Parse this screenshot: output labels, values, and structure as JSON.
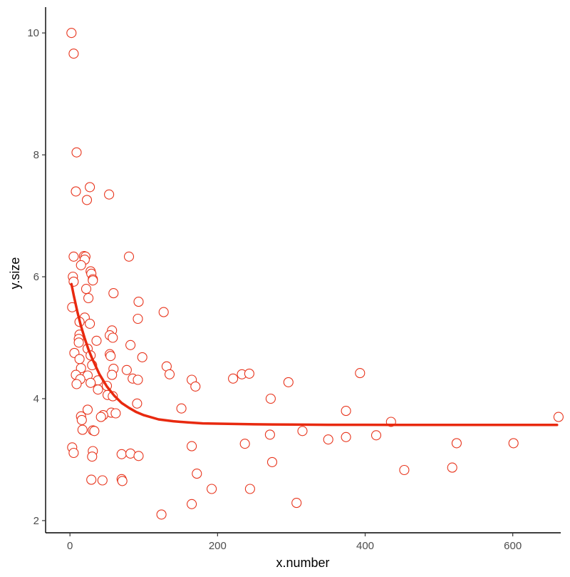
{
  "chart_data": {
    "type": "scatter",
    "title": "",
    "xlabel": "x.number",
    "ylabel": "y.size",
    "xlim": [
      -33,
      665
    ],
    "ylim": [
      1.8,
      10.4
    ],
    "xticks": [
      0,
      200,
      400,
      600
    ],
    "yticks": [
      2,
      4,
      6,
      8,
      10
    ],
    "grid": false,
    "legend": "none",
    "colors": {
      "points": "#e8341c",
      "curve": "#e8290f",
      "axis": "#000000",
      "tick_text": "#4d4d4d"
    },
    "points": [
      {
        "x": 2,
        "y": 10.0
      },
      {
        "x": 5,
        "y": 9.66
      },
      {
        "x": 9,
        "y": 8.04
      },
      {
        "x": 27,
        "y": 7.47
      },
      {
        "x": 8,
        "y": 7.4
      },
      {
        "x": 53,
        "y": 7.35
      },
      {
        "x": 23,
        "y": 7.26
      },
      {
        "x": 5,
        "y": 6.33
      },
      {
        "x": 19,
        "y": 6.34
      },
      {
        "x": 21,
        "y": 6.33
      },
      {
        "x": 80,
        "y": 6.33
      },
      {
        "x": 20,
        "y": 6.28
      },
      {
        "x": 15,
        "y": 6.19
      },
      {
        "x": 28,
        "y": 6.09
      },
      {
        "x": 29,
        "y": 6.05
      },
      {
        "x": 4,
        "y": 6.0
      },
      {
        "x": 31,
        "y": 5.96
      },
      {
        "x": 31,
        "y": 5.94
      },
      {
        "x": 5,
        "y": 5.92
      },
      {
        "x": 22,
        "y": 5.8
      },
      {
        "x": 59,
        "y": 5.73
      },
      {
        "x": 25,
        "y": 5.65
      },
      {
        "x": 93,
        "y": 5.59
      },
      {
        "x": 3,
        "y": 5.5
      },
      {
        "x": 127,
        "y": 5.42
      },
      {
        "x": 20,
        "y": 5.33
      },
      {
        "x": 92,
        "y": 5.31
      },
      {
        "x": 13,
        "y": 5.26
      },
      {
        "x": 27,
        "y": 5.23
      },
      {
        "x": 57,
        "y": 5.12
      },
      {
        "x": 13,
        "y": 5.05
      },
      {
        "x": 54,
        "y": 5.04
      },
      {
        "x": 58,
        "y": 5.0
      },
      {
        "x": 12,
        "y": 4.98
      },
      {
        "x": 36,
        "y": 4.95
      },
      {
        "x": 12,
        "y": 4.92
      },
      {
        "x": 82,
        "y": 4.88
      },
      {
        "x": 24,
        "y": 4.82
      },
      {
        "x": 6,
        "y": 4.75
      },
      {
        "x": 54,
        "y": 4.73
      },
      {
        "x": 28,
        "y": 4.71
      },
      {
        "x": 55,
        "y": 4.7
      },
      {
        "x": 98,
        "y": 4.68
      },
      {
        "x": 13,
        "y": 4.65
      },
      {
        "x": 30,
        "y": 4.55
      },
      {
        "x": 131,
        "y": 4.53
      },
      {
        "x": 15,
        "y": 4.5
      },
      {
        "x": 59,
        "y": 4.49
      },
      {
        "x": 77,
        "y": 4.47
      },
      {
        "x": 233,
        "y": 4.4
      },
      {
        "x": 8,
        "y": 4.39
      },
      {
        "x": 57,
        "y": 4.39
      },
      {
        "x": 24,
        "y": 4.38
      },
      {
        "x": 243,
        "y": 4.41
      },
      {
        "x": 135,
        "y": 4.4
      },
      {
        "x": 393,
        "y": 4.42
      },
      {
        "x": 85,
        "y": 4.33
      },
      {
        "x": 14,
        "y": 4.32
      },
      {
        "x": 92,
        "y": 4.31
      },
      {
        "x": 165,
        "y": 4.31
      },
      {
        "x": 221,
        "y": 4.33
      },
      {
        "x": 38,
        "y": 4.3
      },
      {
        "x": 28,
        "y": 4.26
      },
      {
        "x": 296,
        "y": 4.27
      },
      {
        "x": 9,
        "y": 4.24
      },
      {
        "x": 50,
        "y": 4.21
      },
      {
        "x": 170,
        "y": 4.2
      },
      {
        "x": 38,
        "y": 4.15
      },
      {
        "x": 51,
        "y": 4.06
      },
      {
        "x": 58,
        "y": 4.04
      },
      {
        "x": 272,
        "y": 4.0
      },
      {
        "x": 91,
        "y": 3.92
      },
      {
        "x": 151,
        "y": 3.84
      },
      {
        "x": 24,
        "y": 3.82
      },
      {
        "x": 374,
        "y": 3.8
      },
      {
        "x": 56,
        "y": 3.77
      },
      {
        "x": 62,
        "y": 3.76
      },
      {
        "x": 45,
        "y": 3.73
      },
      {
        "x": 15,
        "y": 3.71
      },
      {
        "x": 42,
        "y": 3.7
      },
      {
        "x": 662,
        "y": 3.7
      },
      {
        "x": 16,
        "y": 3.65
      },
      {
        "x": 435,
        "y": 3.62
      },
      {
        "x": 17,
        "y": 3.49
      },
      {
        "x": 31,
        "y": 3.48
      },
      {
        "x": 33,
        "y": 3.47
      },
      {
        "x": 315,
        "y": 3.47
      },
      {
        "x": 271,
        "y": 3.41
      },
      {
        "x": 415,
        "y": 3.4
      },
      {
        "x": 374,
        "y": 3.37
      },
      {
        "x": 350,
        "y": 3.33
      },
      {
        "x": 524,
        "y": 3.27
      },
      {
        "x": 237,
        "y": 3.26
      },
      {
        "x": 601,
        "y": 3.27
      },
      {
        "x": 165,
        "y": 3.22
      },
      {
        "x": 3,
        "y": 3.2
      },
      {
        "x": 31,
        "y": 3.14
      },
      {
        "x": 5,
        "y": 3.11
      },
      {
        "x": 70,
        "y": 3.09
      },
      {
        "x": 82,
        "y": 3.1
      },
      {
        "x": 93,
        "y": 3.06
      },
      {
        "x": 30,
        "y": 3.05
      },
      {
        "x": 274,
        "y": 2.96
      },
      {
        "x": 518,
        "y": 2.87
      },
      {
        "x": 453,
        "y": 2.83
      },
      {
        "x": 172,
        "y": 2.77
      },
      {
        "x": 70,
        "y": 2.68
      },
      {
        "x": 29,
        "y": 2.67
      },
      {
        "x": 44,
        "y": 2.66
      },
      {
        "x": 71,
        "y": 2.65
      },
      {
        "x": 192,
        "y": 2.52
      },
      {
        "x": 244,
        "y": 2.52
      },
      {
        "x": 307,
        "y": 2.29
      },
      {
        "x": 165,
        "y": 2.27
      },
      {
        "x": 124,
        "y": 2.1
      }
    ],
    "fit_curve": {
      "type": "exponential-decay",
      "x": [
        2,
        5,
        10,
        15,
        20,
        25,
        30,
        40,
        50,
        60,
        70,
        80,
        90,
        100,
        120,
        140,
        160,
        180,
        200,
        250,
        300,
        350,
        400,
        450,
        500,
        550,
        600,
        660
      ],
      "y": [
        5.88,
        5.7,
        5.43,
        5.19,
        4.99,
        4.81,
        4.66,
        4.4,
        4.2,
        4.05,
        3.93,
        3.85,
        3.78,
        3.73,
        3.66,
        3.63,
        3.61,
        3.595,
        3.59,
        3.58,
        3.575,
        3.572,
        3.571,
        3.57,
        3.57,
        3.57,
        3.57,
        3.57
      ]
    }
  }
}
